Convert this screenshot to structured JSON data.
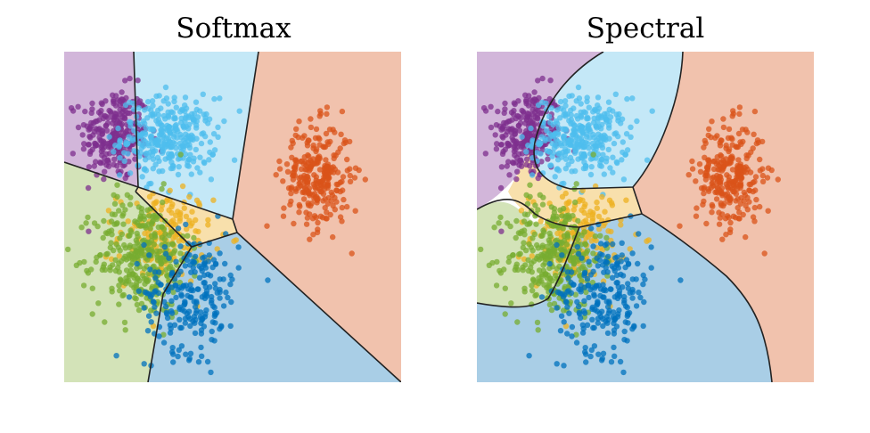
{
  "colors": {
    "class_0": "#0072bd",
    "class_1": "#d95319",
    "class_2": "#edb120",
    "class_3": "#7e2f8e",
    "class_4": "#77ac30",
    "class_5": "#4dbeee",
    "region_0": "#a9cee6",
    "region_1": "#f1c2ad",
    "region_2": "#f8e0ac",
    "region_3": "#d2b6da",
    "region_4": "#d3e3b8",
    "region_5": "#c4e8f7",
    "boundary": "#222222"
  },
  "chart_data": [
    {
      "type": "scatter",
      "title": "Softmax",
      "xlabel": "",
      "ylabel": "",
      "grid": false,
      "legend": "none",
      "xlim": [
        0,
        1
      ],
      "ylim": [
        0,
        1
      ],
      "decision_regions": true,
      "series": [
        {
          "class": 0,
          "center": [
            0.38,
            0.27
          ],
          "spread": [
            0.07,
            0.09
          ],
          "count": 230
        },
        {
          "class": 1,
          "center": [
            0.75,
            0.62
          ],
          "spread": [
            0.05,
            0.08
          ],
          "count": 280
        },
        {
          "class": 2,
          "center": [
            0.3,
            0.44
          ],
          "spread": [
            0.07,
            0.07
          ],
          "count": 170
        },
        {
          "class": 3,
          "center": [
            0.15,
            0.75
          ],
          "spread": [
            0.05,
            0.07
          ],
          "count": 260
        },
        {
          "class": 4,
          "center": [
            0.23,
            0.38
          ],
          "spread": [
            0.07,
            0.09
          ],
          "count": 330
        },
        {
          "class": 5,
          "center": [
            0.31,
            0.74
          ],
          "spread": [
            0.07,
            0.06
          ],
          "count": 320
        }
      ]
    },
    {
      "type": "scatter",
      "title": "Spectral",
      "xlabel": "",
      "ylabel": "",
      "grid": false,
      "legend": "none",
      "xlim": [
        0,
        1
      ],
      "ylim": [
        0,
        1
      ],
      "decision_regions": true,
      "series": [
        {
          "class": 0,
          "center": [
            0.38,
            0.27
          ],
          "spread": [
            0.07,
            0.09
          ],
          "count": 230
        },
        {
          "class": 1,
          "center": [
            0.75,
            0.62
          ],
          "spread": [
            0.05,
            0.08
          ],
          "count": 280
        },
        {
          "class": 2,
          "center": [
            0.3,
            0.44
          ],
          "spread": [
            0.07,
            0.07
          ],
          "count": 170
        },
        {
          "class": 3,
          "center": [
            0.15,
            0.75
          ],
          "spread": [
            0.05,
            0.07
          ],
          "count": 260
        },
        {
          "class": 4,
          "center": [
            0.23,
            0.38
          ],
          "spread": [
            0.07,
            0.09
          ],
          "count": 330
        },
        {
          "class": 5,
          "center": [
            0.31,
            0.74
          ],
          "spread": [
            0.07,
            0.06
          ],
          "count": 320
        }
      ]
    }
  ]
}
